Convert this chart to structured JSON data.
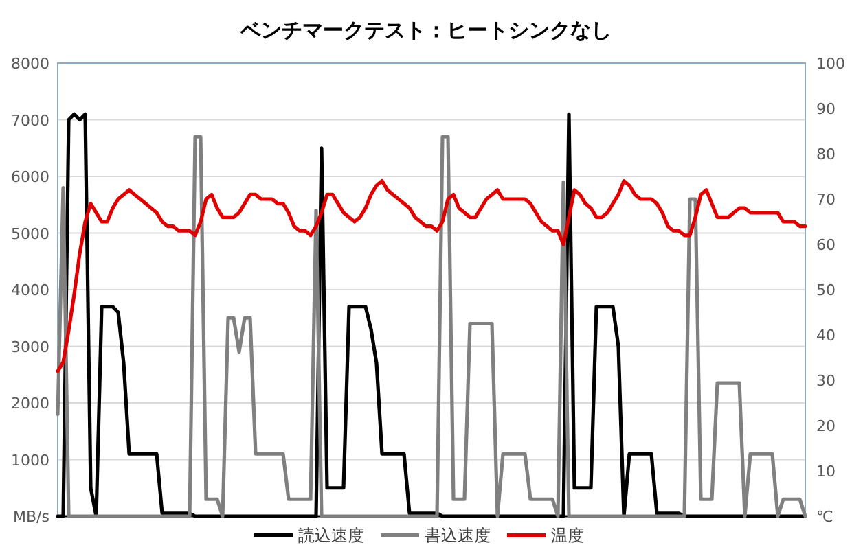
{
  "chart_data": {
    "type": "line",
    "title": "ベンチマークテスト：ヒートシンクなし",
    "categories": [
      null,
      null,
      null,
      null,
      null,
      null,
      null,
      null,
      null,
      null,
      null,
      null,
      null,
      null,
      null,
      null,
      null,
      null,
      null,
      null,
      null,
      null,
      null,
      null,
      null,
      null,
      null,
      null,
      null,
      null,
      null,
      null,
      null,
      null,
      null,
      null,
      null,
      null,
      null,
      null,
      null,
      null,
      null,
      null,
      null,
      null,
      null,
      null,
      null,
      null,
      null,
      null,
      null,
      null,
      null,
      null,
      null,
      null,
      null,
      null,
      null,
      null,
      null,
      null,
      null,
      null,
      null,
      null,
      null,
      null,
      null,
      null,
      null,
      null,
      null,
      null,
      null,
      null,
      null,
      null,
      null,
      null,
      null,
      null,
      null,
      null,
      null,
      null,
      null,
      null,
      null,
      null,
      null,
      null,
      null,
      null,
      null,
      null,
      null,
      null,
      null,
      null,
      null,
      null,
      null,
      null,
      null,
      null,
      null,
      null,
      null,
      null,
      null,
      null,
      null,
      null,
      null,
      null,
      null,
      null,
      null,
      null,
      null,
      null,
      null,
      null,
      null,
      null,
      null,
      null,
      null,
      null,
      null,
      null,
      null,
      null,
      null
    ],
    "series": [
      {
        "name": "読込速度",
        "color": "#000000",
        "values": [
          0,
          0,
          7000,
          7100,
          7000,
          7100,
          500,
          0,
          3700,
          3700,
          3700,
          3600,
          2700,
          1100,
          1100,
          1100,
          1100,
          1100,
          1100,
          50,
          50,
          50,
          50,
          50,
          50,
          0,
          0,
          0,
          0,
          0,
          0,
          0,
          0,
          0,
          0,
          0,
          0,
          0,
          0,
          0,
          0,
          0,
          0,
          0,
          0,
          0,
          0,
          0,
          6500,
          500,
          500,
          500,
          500,
          3700,
          3700,
          3700,
          3700,
          3300,
          2700,
          1100,
          1100,
          1100,
          1100,
          1100,
          50,
          50,
          50,
          50,
          50,
          50,
          0,
          0,
          0,
          0,
          0,
          0,
          0,
          0,
          0,
          0,
          0,
          0,
          0,
          0,
          0,
          0,
          0,
          0,
          0,
          0,
          0,
          0,
          0,
          7100,
          500,
          500,
          500,
          500,
          3700,
          3700,
          3700,
          3700,
          3000,
          0,
          1100,
          1100,
          1100,
          1100,
          1100,
          50,
          50,
          50,
          50,
          50,
          0,
          0,
          0,
          0,
          0,
          0,
          0,
          0,
          0,
          0,
          0,
          0,
          0,
          0,
          0,
          0,
          0,
          0,
          0,
          0,
          0,
          0,
          0
        ]
      },
      {
        "name": "書込速度",
        "color": "#808080",
        "values": [
          1800,
          5800,
          0,
          0,
          0,
          0,
          0,
          0,
          0,
          0,
          0,
          0,
          0,
          0,
          0,
          0,
          0,
          0,
          0,
          0,
          0,
          0,
          0,
          0,
          0,
          6700,
          6700,
          300,
          300,
          300,
          0,
          3500,
          3500,
          2900,
          3500,
          3500,
          1100,
          1100,
          1100,
          1100,
          1100,
          1100,
          300,
          300,
          300,
          300,
          300,
          5400,
          0,
          0,
          0,
          0,
          0,
          0,
          0,
          0,
          0,
          0,
          0,
          0,
          0,
          0,
          0,
          0,
          0,
          0,
          0,
          0,
          0,
          0,
          6700,
          6700,
          300,
          300,
          300,
          3400,
          3400,
          3400,
          3400,
          3400,
          0,
          1100,
          1100,
          1100,
          1100,
          1100,
          300,
          300,
          300,
          300,
          300,
          0,
          5900,
          0,
          0,
          0,
          0,
          0,
          0,
          0,
          0,
          0,
          0,
          0,
          0,
          0,
          0,
          0,
          0,
          0,
          0,
          0,
          0,
          0,
          0,
          5600,
          5600,
          300,
          300,
          300,
          2350,
          2350,
          2350,
          2350,
          2350,
          0,
          1100,
          1100,
          1100,
          1100,
          1100,
          0,
          300,
          300,
          300,
          300,
          0
        ]
      },
      {
        "name": "温度",
        "color": "#e00000",
        "axis": "y2",
        "values": [
          32,
          34,
          41,
          49,
          58,
          65,
          69,
          67,
          65,
          65,
          68,
          70,
          71,
          72,
          71,
          70,
          69,
          68,
          67,
          65,
          64,
          64,
          63,
          63,
          63,
          62,
          65,
          70,
          71,
          68,
          66,
          66,
          66,
          67,
          69,
          71,
          71,
          70,
          70,
          70,
          69,
          69,
          67,
          64,
          63,
          63,
          62,
          64,
          67,
          71,
          71,
          69,
          67,
          66,
          65,
          66,
          68,
          71,
          73,
          74,
          72,
          71,
          70,
          69,
          68,
          66,
          65,
          64,
          64,
          63,
          65,
          70,
          71,
          68,
          67,
          66,
          66,
          68,
          70,
          71,
          72,
          70,
          70,
          70,
          70,
          70,
          69,
          67,
          65,
          64,
          63,
          63,
          60,
          66,
          72,
          71,
          69,
          68,
          66,
          66,
          67,
          69,
          71,
          74,
          73,
          71,
          70,
          70,
          70,
          69,
          67,
          64,
          63,
          63,
          62,
          62,
          66,
          71,
          72,
          69,
          66,
          66,
          66,
          67,
          68,
          68,
          67,
          67,
          67,
          67,
          67,
          67,
          65,
          65,
          65,
          64,
          64
        ]
      }
    ],
    "ylim": [
      0,
      8000
    ],
    "yticks": [
      {
        "value": 0,
        "label": "MB/s"
      },
      1000,
      2000,
      3000,
      4000,
      5000,
      6000,
      7000,
      8000
    ],
    "y2lim": [
      0,
      100
    ],
    "y2ticks": [
      {
        "value": 0,
        "label": "℃"
      },
      10,
      20,
      30,
      40,
      50,
      60,
      70,
      80,
      90,
      100
    ],
    "grid": "y",
    "legend": "bottom",
    "line_style": "solid"
  }
}
